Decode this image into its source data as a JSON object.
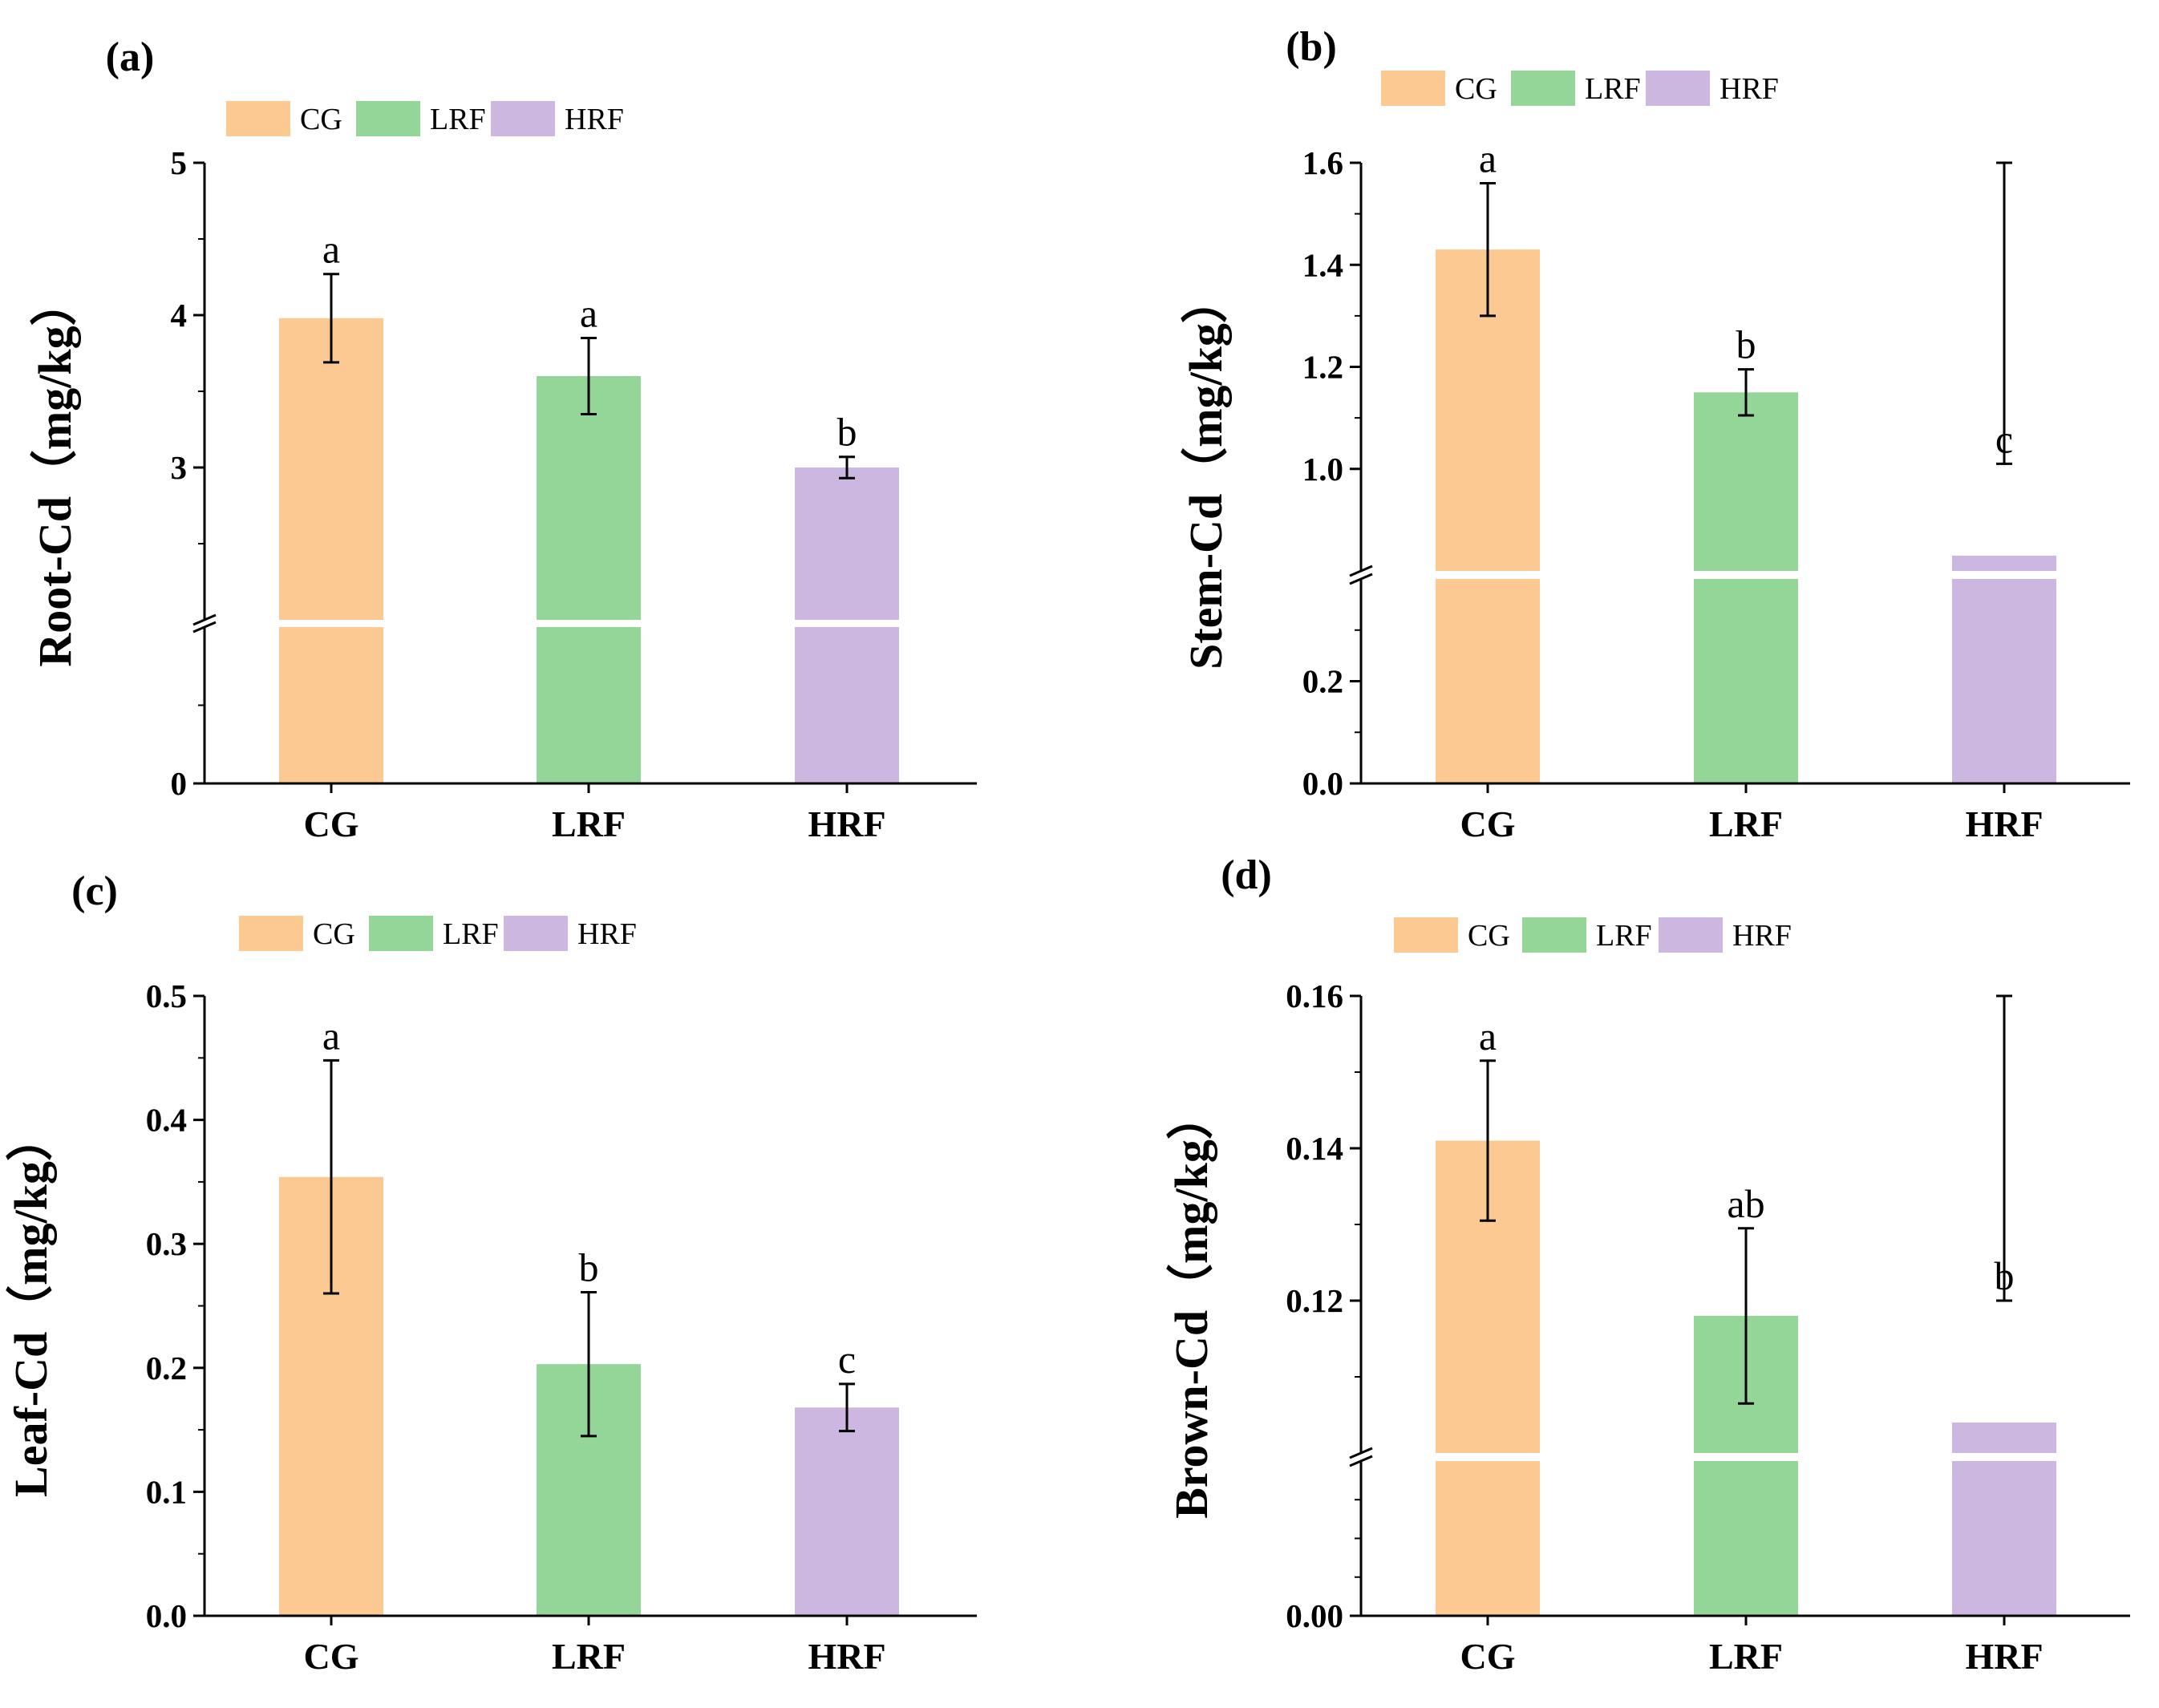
{
  "colors": {
    "CG": "#fcc993",
    "LRF": "#93d697",
    "HRF": "#cbb7e0",
    "axis": "#000000"
  },
  "chart_data": [
    {
      "type": "bar",
      "panel_label": "(a)",
      "ylabel": "Root-Cd（mg/kg）",
      "categories": [
        "CG",
        "LRF",
        "HRF"
      ],
      "legend": [
        "CG",
        "LRF",
        "HRF"
      ],
      "values": [
        3.98,
        3.6,
        3.0
      ],
      "errors": [
        0.29,
        0.25,
        0.07
      ],
      "letters": [
        "a",
        "a",
        "b"
      ],
      "ylim": [
        0,
        5
      ],
      "axis_break": {
        "lower": [
          0,
          1
        ],
        "upper": [
          2,
          5
        ]
      },
      "yticks": [
        "0",
        "3",
        "4",
        "5"
      ]
    },
    {
      "type": "bar",
      "panel_label": "(b)",
      "ylabel": "Stem-Cd（mg/kg）",
      "categories": [
        "CG",
        "LRF",
        "HRF"
      ],
      "legend": [
        "CG",
        "LRF",
        "HRF"
      ],
      "values": [
        1.43,
        1.15,
        0.83
      ],
      "errors": [
        0.13,
        0.045,
        0.18
      ],
      "letters": [
        "a",
        "b",
        "c"
      ],
      "ylim": [
        0,
        1.6
      ],
      "axis_break": {
        "lower": [
          0,
          0.4
        ],
        "upper": [
          0.8,
          1.6
        ]
      },
      "yticks": [
        "0.0",
        "0.2",
        "1.0",
        "1.2",
        "1.4",
        "1.6"
      ]
    },
    {
      "type": "bar",
      "panel_label": "(c)",
      "ylabel": "Leaf-Cd（mg/kg）",
      "categories": [
        "CG",
        "LRF",
        "HRF"
      ],
      "legend": [
        "CG",
        "LRF",
        "HRF"
      ],
      "values": [
        0.354,
        0.203,
        0.168
      ],
      "errors": [
        0.094,
        0.058,
        0.019
      ],
      "letters": [
        "a",
        "b",
        "c"
      ],
      "ylim": [
        0,
        0.5
      ],
      "axis_break": null,
      "yticks": [
        "0.0",
        "0.1",
        "0.2",
        "0.3",
        "0.4",
        "0.5"
      ]
    },
    {
      "type": "bar",
      "panel_label": "(d)",
      "ylabel": "Brown-Cd（mg/kg）",
      "categories": [
        "CG",
        "LRF",
        "HRF"
      ],
      "legend": [
        "CG",
        "LRF",
        "HRF"
      ],
      "values": [
        0.141,
        0.118,
        0.104
      ],
      "errors": [
        0.0105,
        0.0115,
        0.016
      ],
      "letters": [
        "a",
        "ab",
        "b"
      ],
      "ylim": [
        0,
        0.16
      ],
      "axis_break": {
        "lower": [
          0,
          0.02
        ],
        "upper": [
          0.1,
          0.16
        ]
      },
      "yticks": [
        "0.00",
        "0.12",
        "0.14",
        "0.16"
      ]
    }
  ]
}
